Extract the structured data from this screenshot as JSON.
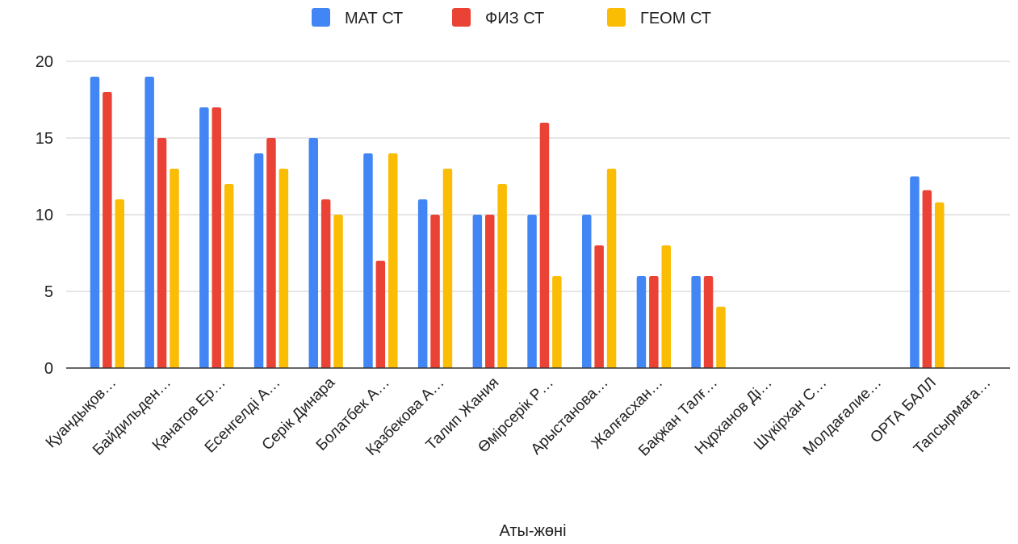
{
  "chart_data": {
    "type": "bar",
    "categories": [
      "Қуандықов…",
      "Байдильден…",
      "Қанатов Ер…",
      "Есенгелді А…",
      "Серік Динара",
      "Болатбек А…",
      "Қазбекова А…",
      "Талип Жания",
      "Өмірсерік Р…",
      "Арыстанова…",
      "Жалғасхан…",
      "Бақжан Талғ…",
      "Нұрханов Ді…",
      "Шүкірхан С…",
      "Молдағалие…",
      "ОРТА БАЛЛ",
      "Тапсырмаға…"
    ],
    "series": [
      {
        "name": "МАТ СТ",
        "color": "#4285f4",
        "values": [
          19,
          19,
          17,
          14,
          15,
          14,
          11,
          10,
          10,
          10,
          6,
          6,
          null,
          null,
          null,
          12.5,
          null
        ]
      },
      {
        "name": "ФИЗ СТ",
        "color": "#ea4335",
        "values": [
          18,
          15,
          17,
          15,
          11,
          7,
          10,
          10,
          16,
          8,
          6,
          6,
          null,
          null,
          null,
          11.6,
          null
        ]
      },
      {
        "name": "ГЕОМ СТ",
        "color": "#fbbc04",
        "values": [
          11,
          13,
          12,
          13,
          10,
          14,
          13,
          12,
          6,
          13,
          8,
          4,
          null,
          null,
          null,
          10.8,
          null
        ]
      }
    ],
    "title": "",
    "xlabel": "Аты-жөні",
    "ylabel": "",
    "yticks": [
      "0",
      "5",
      "10",
      "15",
      "20"
    ],
    "ylim": [
      0,
      20
    ],
    "grid": true,
    "legend_position": "top"
  }
}
